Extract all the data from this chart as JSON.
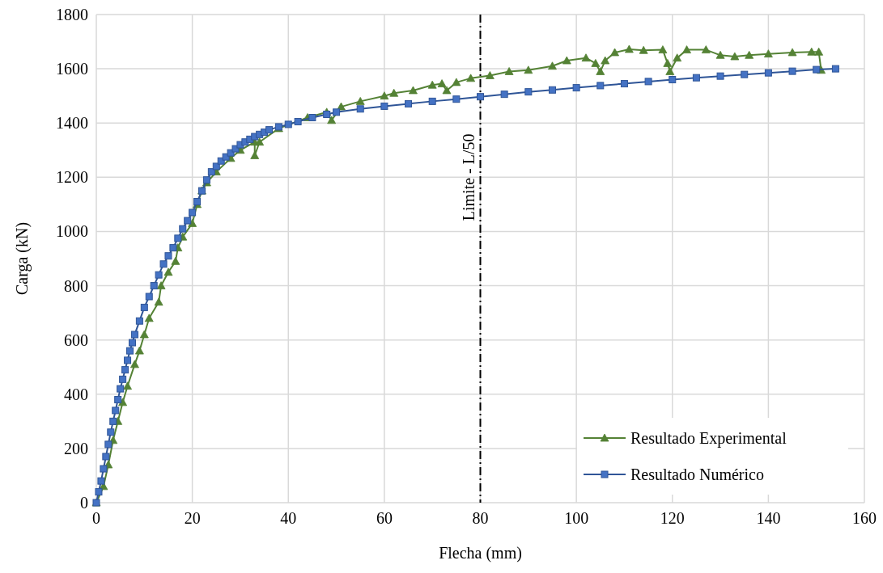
{
  "chart_data": {
    "type": "line",
    "xlabel": "Flecha (mm)",
    "ylabel": "Carga (kN)",
    "xlim": [
      0,
      160
    ],
    "xticks": [
      0,
      20,
      40,
      60,
      80,
      100,
      120,
      140,
      160
    ],
    "ylim": [
      0,
      1800
    ],
    "yticks": [
      0,
      200,
      400,
      600,
      800,
      1000,
      1200,
      1400,
      1600,
      1800
    ],
    "grid": true,
    "legend": "bottom right",
    "line_style": "solid",
    "series": [
      {
        "name": "Resultado Experimental",
        "color": "#548235",
        "marker": "triangle",
        "x": [
          0,
          1.5,
          2.5,
          3.5,
          4.5,
          5.5,
          6.5,
          8,
          9,
          10,
          11,
          13,
          13.5,
          15,
          16.5,
          17,
          18,
          20,
          21,
          22,
          23,
          25,
          28,
          30,
          33,
          33,
          34,
          38,
          44,
          48,
          49,
          51,
          55,
          60,
          62,
          66,
          70,
          72,
          73,
          75,
          78,
          82,
          86,
          90,
          95,
          98,
          102,
          104,
          105,
          106,
          108,
          111,
          114,
          118,
          119,
          119.5,
          121,
          123,
          127,
          130,
          133,
          136,
          140,
          145,
          149,
          150.5,
          151
        ],
        "values": [
          0,
          60,
          140,
          230,
          300,
          370,
          430,
          510,
          560,
          620,
          680,
          740,
          800,
          850,
          890,
          940,
          980,
          1030,
          1100,
          1150,
          1180,
          1220,
          1270,
          1300,
          1330,
          1280,
          1330,
          1380,
          1420,
          1440,
          1410,
          1460,
          1480,
          1500,
          1510,
          1520,
          1540,
          1545,
          1520,
          1550,
          1565,
          1575,
          1590,
          1595,
          1610,
          1630,
          1640,
          1620,
          1590,
          1630,
          1660,
          1672,
          1668,
          1670,
          1620,
          1590,
          1640,
          1670,
          1670,
          1650,
          1645,
          1650,
          1655,
          1660,
          1662,
          1662,
          1595
        ]
      },
      {
        "name": "Resultado Numérico",
        "color": "#2f5597",
        "marker": "square",
        "x": [
          0,
          0.5,
          1,
          1.5,
          2,
          2.5,
          3,
          3.5,
          4,
          4.5,
          5,
          5.5,
          6,
          6.5,
          7,
          7.5,
          8,
          9,
          10,
          11,
          12,
          13,
          14,
          15,
          16,
          17,
          18,
          19,
          20,
          21,
          22,
          23,
          24,
          25,
          26,
          27,
          28,
          29,
          30,
          31,
          32,
          33,
          34,
          35,
          36,
          38,
          40,
          42,
          45,
          48,
          50,
          55,
          60,
          65,
          70,
          75,
          80,
          85,
          90,
          95,
          100,
          105,
          110,
          115,
          120,
          125,
          130,
          135,
          140,
          145,
          150,
          154
        ],
        "values": [
          0,
          40,
          80,
          125,
          170,
          215,
          260,
          300,
          340,
          380,
          420,
          455,
          490,
          525,
          560,
          590,
          620,
          670,
          720,
          760,
          800,
          840,
          880,
          910,
          940,
          975,
          1010,
          1040,
          1070,
          1110,
          1150,
          1190,
          1220,
          1240,
          1260,
          1275,
          1290,
          1305,
          1320,
          1330,
          1340,
          1350,
          1358,
          1366,
          1375,
          1386,
          1395,
          1405,
          1420,
          1432,
          1440,
          1452,
          1462,
          1471,
          1480,
          1488,
          1497,
          1506,
          1515,
          1522,
          1530,
          1538,
          1545,
          1553,
          1560,
          1567,
          1573,
          1579,
          1585,
          1591,
          1597,
          1600
        ]
      }
    ],
    "ref_lines": [
      {
        "axis": "x",
        "value": 80,
        "label": "Limite - L/50",
        "color": "#000000",
        "line_style": "dashdot"
      }
    ]
  }
}
